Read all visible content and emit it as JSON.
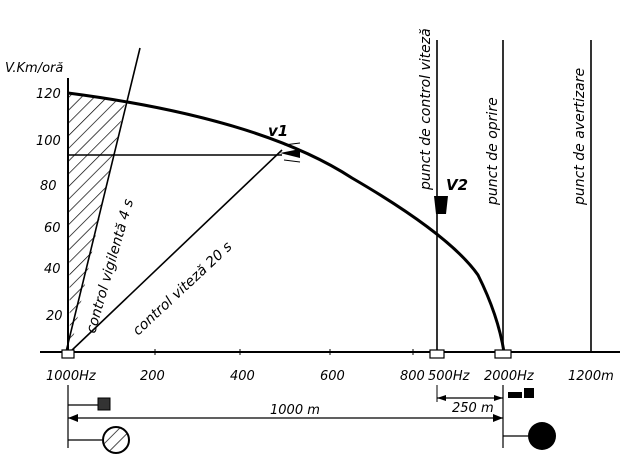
{
  "axis": {
    "y_title": "V.Km/oră",
    "y_ticks": [
      "120",
      "100",
      "80",
      "60",
      "40",
      "20"
    ],
    "x_ticks": [
      "1000Hz",
      "200",
      "400",
      "600",
      "800",
      "500Hz",
      "2000Hz",
      "1200m"
    ]
  },
  "labels": {
    "v1": "v1",
    "v2": "V2",
    "vigilance": "control vigilentă 4 s",
    "speed": "control viteză 20 s",
    "speed_point": "punct de control viteză",
    "stop_point": "punct de oprire",
    "warning_point": "punct de avertizare"
  },
  "dimensions": {
    "d250": "250 m",
    "d1000": "1000 m"
  }
}
